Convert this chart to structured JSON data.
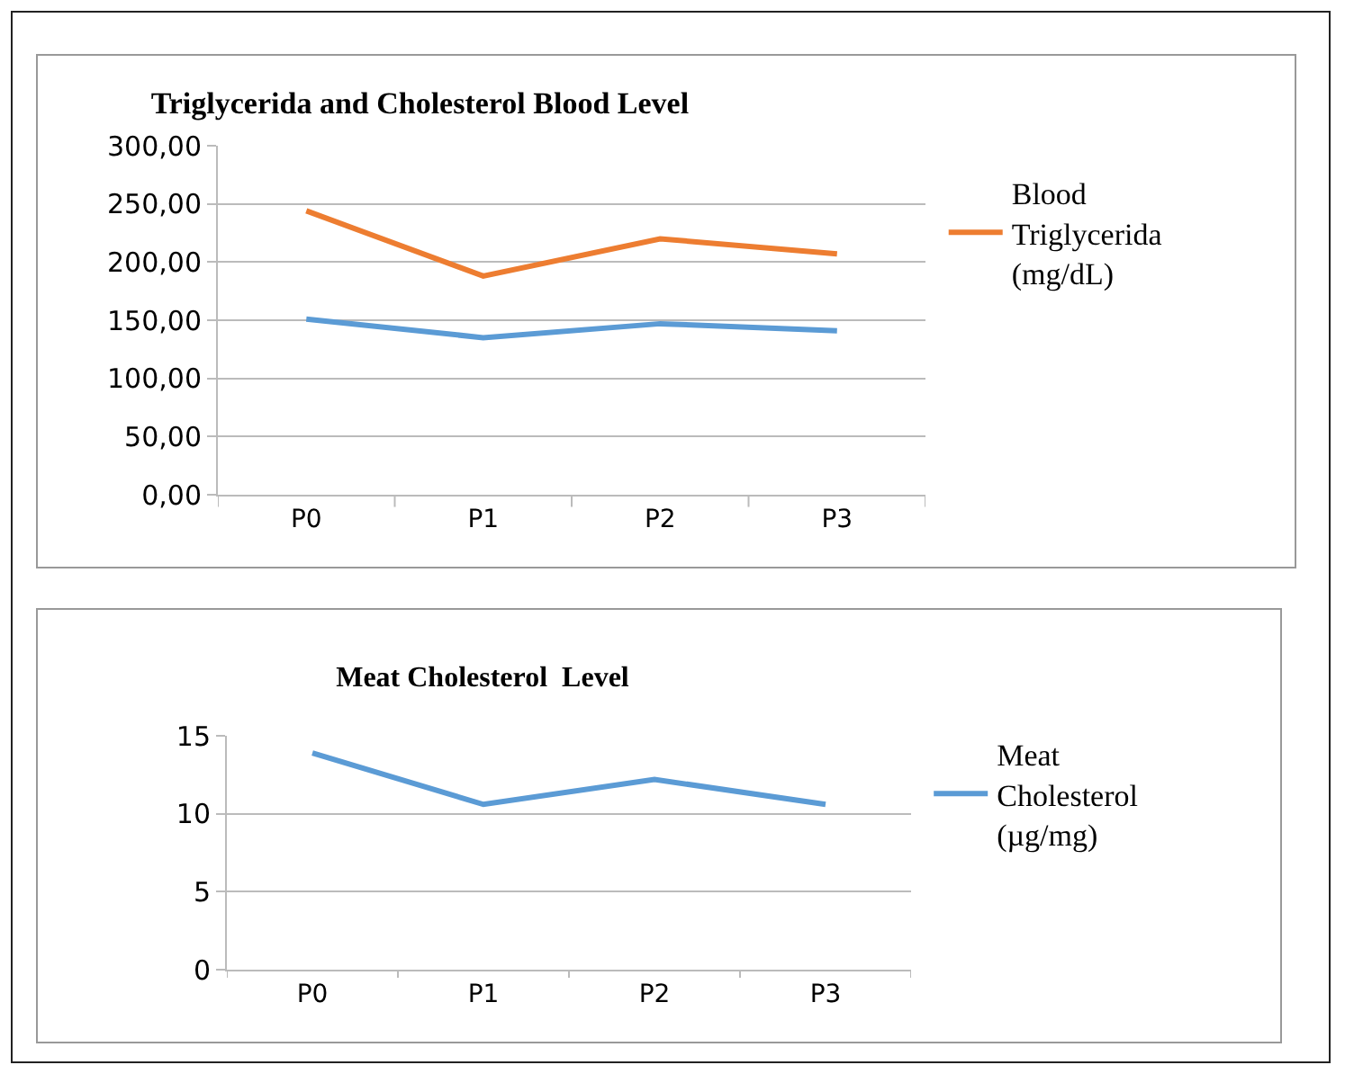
{
  "chart_data": [
    {
      "type": "line",
      "title": "Triglycerida and Cholesterol Blood Level",
      "categories": [
        "P0",
        "P1",
        "P2",
        "P3"
      ],
      "series": [
        {
          "name": "Blood Triglycerida (mg/dL)",
          "color": "#ed7d31",
          "values": [
            244,
            188,
            220,
            207
          ]
        },
        {
          "color": "#5b9bd5",
          "values": [
            151,
            135,
            147,
            141
          ]
        }
      ],
      "ylim": [
        0,
        300
      ],
      "yticks": [
        {
          "value": 0,
          "label": "0,00"
        },
        {
          "value": 50,
          "label": "50,00"
        },
        {
          "value": 100,
          "label": "100,00"
        },
        {
          "value": 150,
          "label": "150,00"
        },
        {
          "value": 200,
          "label": "200,00"
        },
        {
          "value": 250,
          "label": "250,00"
        },
        {
          "value": 300,
          "label": "300,00"
        }
      ],
      "grid": "y",
      "legend": "right",
      "marker": "none"
    },
    {
      "type": "line",
      "title": "Meat Cholesterol  Level",
      "categories": [
        "P0",
        "P1",
        "P2",
        "P3"
      ],
      "series": [
        {
          "name": "Meat Cholesterol (µg/mg)",
          "color": "#5b9bd5",
          "values": [
            13.9,
            10.6,
            12.2,
            10.6
          ]
        }
      ],
      "ylim": [
        0,
        15
      ],
      "yticks": [
        0,
        5,
        10,
        15
      ],
      "grid": "y",
      "legend": "right",
      "marker": "none"
    }
  ]
}
